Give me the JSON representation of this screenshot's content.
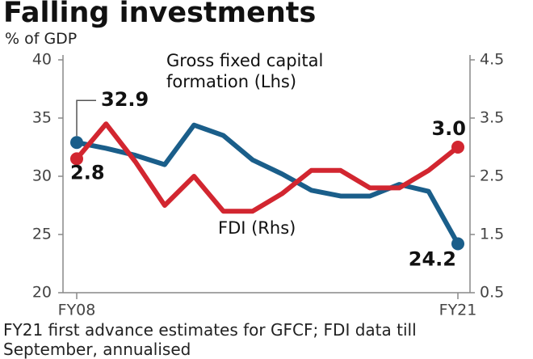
{
  "chart_data": {
    "type": "line",
    "title": "Falling investments",
    "ylabel": "% of GDP",
    "note": "FY21 first advance estimates for GFCF; FDI data till September, annualised",
    "categories": [
      "FY08",
      null,
      null,
      null,
      null,
      null,
      null,
      null,
      null,
      null,
      null,
      null,
      null,
      "FY21"
    ],
    "ylim": [
      20,
      40
    ],
    "yticks": [
      20,
      25,
      30,
      35,
      40
    ],
    "y2lim": [
      0.5,
      4.5
    ],
    "y2ticks": [
      0.5,
      1.5,
      2.5,
      3.5,
      4.5
    ],
    "series": [
      {
        "name": "Gross fixed capital formation (Lhs)",
        "color": "#1a5e8a",
        "values": [
          32.9,
          32.4,
          31.8,
          31.0,
          34.4,
          33.5,
          31.4,
          30.2,
          28.8,
          28.3,
          28.3,
          29.3,
          28.7,
          24.2
        ],
        "value_labels": [
          "32.9",
          null,
          null,
          null,
          null,
          null,
          null,
          null,
          null,
          null,
          null,
          null,
          null,
          "24.2"
        ]
      },
      {
        "name": "FDI (Rhs)",
        "color": "#d22630",
        "axis": "y2",
        "values": [
          2.8,
          3.4,
          2.75,
          2.0,
          2.5,
          1.9,
          1.9,
          2.2,
          2.6,
          2.6,
          2.3,
          2.3,
          2.6,
          3.0
        ],
        "value_labels": [
          "2.8",
          null,
          null,
          null,
          null,
          null,
          null,
          null,
          null,
          null,
          null,
          null,
          null,
          "3.0"
        ]
      }
    ]
  }
}
